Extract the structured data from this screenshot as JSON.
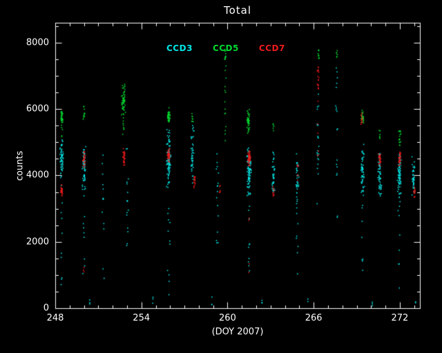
{
  "title": "Total",
  "legend": {
    "items": [
      "CCD3",
      "CCD5",
      "CCD7"
    ]
  },
  "chart_data": {
    "type": "scatter",
    "title": "Total",
    "xlabel": "(DOY 2007)",
    "ylabel": "counts",
    "xlim": [
      248,
      273.4
    ],
    "ylim": [
      0,
      8600
    ],
    "xticks": {
      "major": [
        248,
        254,
        260,
        266,
        272
      ],
      "minor_step": 1
    },
    "yticks": {
      "major": [
        0,
        2000,
        4000,
        6000,
        8000
      ],
      "minor_step": 500
    },
    "background": "#000000",
    "axis_color": "#ffffff",
    "grid": false,
    "legend_position": "top-inside",
    "clusters_format": "[x_center_doy, x_halfwidth, y_min_counts, y_max_counts, n_points]",
    "series": [
      {
        "name": "CCD3",
        "color": "#00e5e5",
        "marker": "dot",
        "clusters": [
          [
            248.45,
            0.13,
            3800,
            5250,
            60
          ],
          [
            248.45,
            0.1,
            700,
            3800,
            10
          ],
          [
            250.0,
            0.13,
            3400,
            5050,
            65
          ],
          [
            250.0,
            0.1,
            300,
            3400,
            9
          ],
          [
            251.35,
            0.08,
            900,
            4700,
            13
          ],
          [
            253.0,
            0.1,
            1400,
            5000,
            16
          ],
          [
            255.9,
            0.18,
            3500,
            5450,
            95
          ],
          [
            255.9,
            0.12,
            400,
            3500,
            11
          ],
          [
            257.55,
            0.12,
            3600,
            5650,
            45
          ],
          [
            259.3,
            0.08,
            1800,
            4900,
            16
          ],
          [
            261.5,
            0.18,
            3300,
            4950,
            90
          ],
          [
            261.5,
            0.12,
            300,
            3300,
            10
          ],
          [
            263.2,
            0.12,
            3350,
            4750,
            40
          ],
          [
            264.85,
            0.12,
            2900,
            4950,
            38
          ],
          [
            264.85,
            0.08,
            600,
            2900,
            7
          ],
          [
            266.3,
            0.08,
            2800,
            7650,
            22
          ],
          [
            267.6,
            0.08,
            2400,
            7700,
            18
          ],
          [
            269.4,
            0.15,
            3300,
            5050,
            60
          ],
          [
            269.4,
            0.08,
            700,
            3300,
            8
          ],
          [
            270.6,
            0.14,
            3250,
            4850,
            55
          ],
          [
            271.95,
            0.16,
            3150,
            4950,
            75
          ],
          [
            271.95,
            0.08,
            500,
            3150,
            8
          ],
          [
            272.95,
            0.12,
            3250,
            4650,
            42
          ],
          [
            250.4,
            0.03,
            80,
            400,
            3
          ],
          [
            254.8,
            0.03,
            100,
            500,
            3
          ],
          [
            258.9,
            0.03,
            60,
            350,
            3
          ],
          [
            262.4,
            0.03,
            80,
            400,
            3
          ],
          [
            265.6,
            0.03,
            100,
            350,
            2
          ],
          [
            270.1,
            0.03,
            60,
            300,
            3
          ],
          [
            273.1,
            0.03,
            80,
            300,
            2
          ]
        ]
      },
      {
        "name": "CCD5",
        "color": "#00d830",
        "marker": "dot",
        "clusters": [
          [
            248.45,
            0.1,
            5550,
            5980,
            32
          ],
          [
            248.45,
            0.06,
            5100,
            5550,
            5
          ],
          [
            250.0,
            0.08,
            5650,
            6100,
            12
          ],
          [
            252.75,
            0.16,
            5650,
            6850,
            55
          ],
          [
            252.75,
            0.08,
            4900,
            5650,
            7
          ],
          [
            255.9,
            0.12,
            5480,
            6080,
            36
          ],
          [
            257.55,
            0.07,
            5600,
            5900,
            8
          ],
          [
            259.85,
            0.07,
            7480,
            7820,
            13
          ],
          [
            259.85,
            0.06,
            4900,
            7400,
            14
          ],
          [
            261.45,
            0.13,
            5200,
            6050,
            42
          ],
          [
            263.2,
            0.06,
            5300,
            5600,
            6
          ],
          [
            266.35,
            0.07,
            7520,
            7860,
            11
          ],
          [
            267.6,
            0.05,
            7560,
            7760,
            6
          ],
          [
            269.4,
            0.1,
            5480,
            6020,
            26
          ],
          [
            270.6,
            0.06,
            5100,
            5400,
            6
          ],
          [
            272.0,
            0.1,
            4850,
            5350,
            18
          ]
        ]
      },
      {
        "name": "CCD7",
        "color": "#ef1a1a",
        "marker": "dot",
        "clusters": [
          [
            248.45,
            0.09,
            3330,
            3760,
            26
          ],
          [
            250.0,
            0.1,
            4200,
            4780,
            30
          ],
          [
            252.8,
            0.1,
            4260,
            4820,
            30
          ],
          [
            255.9,
            0.11,
            4360,
            4880,
            36
          ],
          [
            257.7,
            0.08,
            3560,
            3960,
            16
          ],
          [
            259.45,
            0.05,
            3480,
            3780,
            7
          ],
          [
            261.5,
            0.12,
            4260,
            4820,
            42
          ],
          [
            263.2,
            0.07,
            3380,
            3680,
            10
          ],
          [
            264.9,
            0.05,
            3500,
            4400,
            7
          ],
          [
            266.3,
            0.07,
            6600,
            7320,
            18
          ],
          [
            266.3,
            0.05,
            3900,
            6500,
            6
          ],
          [
            269.35,
            0.08,
            5540,
            5880,
            12
          ],
          [
            270.6,
            0.1,
            4260,
            4720,
            26
          ],
          [
            272.0,
            0.1,
            4260,
            4780,
            30
          ],
          [
            273.0,
            0.08,
            3340,
            3660,
            15
          ],
          [
            250.0,
            0.04,
            600,
            1600,
            3
          ],
          [
            261.5,
            0.05,
            900,
            2900,
            4
          ]
        ]
      }
    ]
  }
}
